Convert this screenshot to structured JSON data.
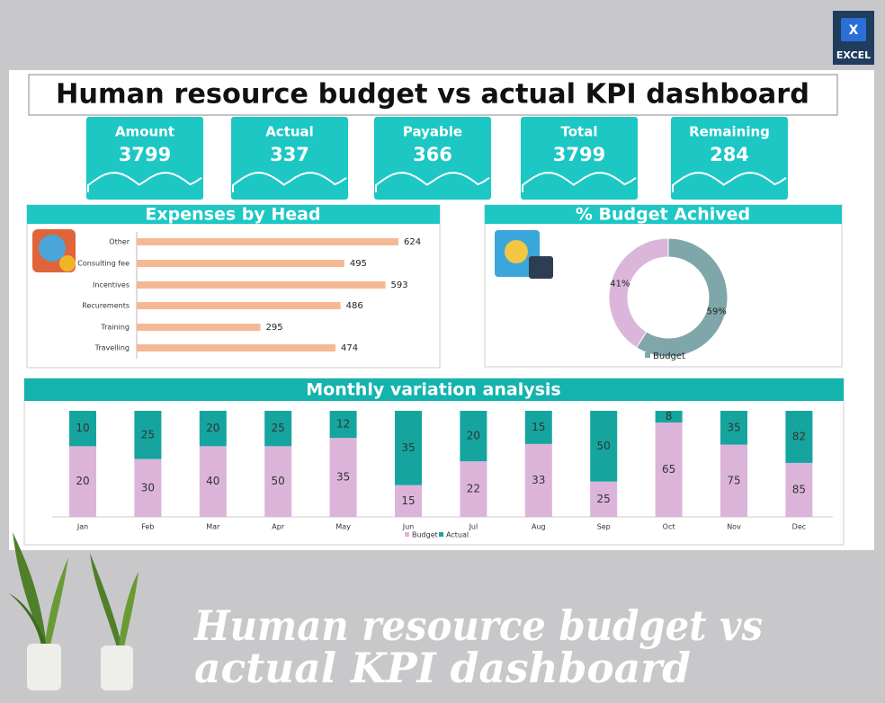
{
  "header": {
    "title": "Human resource budget vs actual KPI dashboard",
    "badge": "EXCEL"
  },
  "kpis": [
    {
      "label": "Amount",
      "value": 3799
    },
    {
      "label": "Actual",
      "value": 337
    },
    {
      "label": "Payable",
      "value": 366
    },
    {
      "label": "Total",
      "value": 3799
    },
    {
      "label": "Remaining",
      "value": 284
    }
  ],
  "chart_data": [
    {
      "type": "hbar",
      "title": "Expenses by Head",
      "categories": [
        "Other",
        "Consulting fee",
        "Incentives",
        "Recurements",
        "Training",
        "Travelling"
      ],
      "values": [
        624,
        495,
        593,
        486,
        295,
        474
      ],
      "color": "#f5b894"
    },
    {
      "type": "donut",
      "title": "% Budget Achived",
      "categories": [
        null,
        "Budget"
      ],
      "values": [
        41,
        59
      ],
      "value_labels": [
        "41%",
        "59%"
      ],
      "colors": [
        "#dbb6da",
        "#7fa7aa"
      ]
    },
    {
      "type": "bar",
      "stacked": "percent",
      "title": "Monthly variation analysis",
      "categories": [
        "Jan",
        "Feb",
        "Mar",
        "Apr",
        "May",
        "Jun",
        "Jul",
        "Aug",
        "Sep",
        "Oct",
        "Nov",
        "Dec"
      ],
      "series": [
        {
          "name": "Budget",
          "color": "#dcb4da",
          "values": [
            20,
            30,
            40,
            50,
            35,
            15,
            22,
            33,
            25,
            65,
            75,
            85
          ]
        },
        {
          "name": "Actual",
          "color": "#15a59e",
          "values": [
            10,
            25,
            20,
            25,
            12,
            35,
            20,
            15,
            50,
            8,
            35,
            82
          ]
        }
      ]
    }
  ],
  "footer": {
    "caption_lines": [
      "Human resource budget vs",
      "actual KPI dashboard"
    ]
  }
}
